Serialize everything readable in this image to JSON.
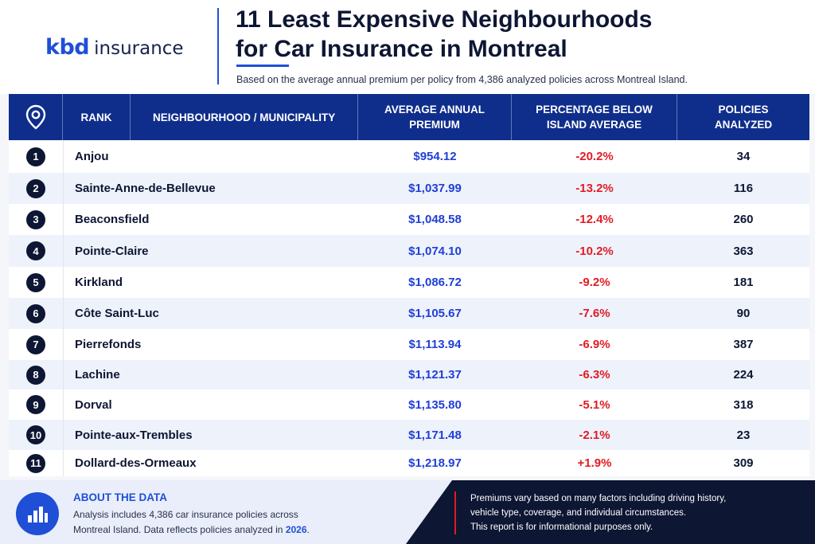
{
  "header": {
    "logo_primary": "kbd",
    "logo_secondary": "insurance",
    "title_line1": "11 Least Expensive Neighbourhoods",
    "title_line2": "for Car Insurance in Montreal",
    "subtitle": "Based on the average annual premium per policy from 4,386 analyzed policies across Montreal Island."
  },
  "table": {
    "icon": "location-pin-icon",
    "columns": {
      "rank": "RANK",
      "name": "NEIGHBOURHOOD / MUNICIPALITY",
      "premium_line1": "AVERAGE ANNUAL",
      "premium_line2": "PREMIUM",
      "pct_line1": "PERCENTAGE BELOW",
      "pct_line2": "ISLAND AVERAGE",
      "policies_line1": "POLICIES",
      "policies_line2": "ANALYZED"
    },
    "rows": [
      {
        "rank": "1",
        "name": "Anjou",
        "premium": "$954.12",
        "pct": "-20.2%",
        "policies": "34"
      },
      {
        "rank": "2",
        "name": "Sainte-Anne-de-Bellevue",
        "premium": "$1,037.99",
        "pct": "-13.2%",
        "policies": "116"
      },
      {
        "rank": "3",
        "name": "Beaconsfield",
        "premium": "$1,048.58",
        "pct": "-12.4%",
        "policies": "260"
      },
      {
        "rank": "4",
        "name": "Pointe-Claire",
        "premium": "$1,074.10",
        "pct": "-10.2%",
        "policies": "363"
      },
      {
        "rank": "5",
        "name": "Kirkland",
        "premium": "$1,086.72",
        "pct": "-9.2%",
        "policies": "181"
      },
      {
        "rank": "6",
        "name": "Côte Saint-Luc",
        "premium": "$1,105.67",
        "pct": "-7.6%",
        "policies": "90"
      },
      {
        "rank": "7",
        "name": "Pierrefonds",
        "premium": "$1,113.94",
        "pct": "-6.9%",
        "policies": "387"
      },
      {
        "rank": "8",
        "name": "Lachine",
        "premium": "$1,121.37",
        "pct": "-6.3%",
        "policies": "224"
      },
      {
        "rank": "9",
        "name": "Dorval",
        "premium": "$1,135.80",
        "pct": "-5.1%",
        "policies": "318"
      },
      {
        "rank": "10",
        "name": "Pointe-aux-Trembles",
        "premium": "$1,171.48",
        "pct": "-2.1%",
        "policies": "23"
      },
      {
        "rank": "11",
        "name": "Dollard-des-Ormeaux",
        "premium": "$1,218.97",
        "pct": "+1.9%",
        "policies": "309"
      }
    ]
  },
  "footer": {
    "icon": "bar-chart-icon",
    "about_title": "ABOUT THE DATA",
    "about_line1": "Analysis includes 4,386 car insurance policies across",
    "about_line2_prefix": "Montreal Island. Data reflects policies analyzed in ",
    "about_year": "2026",
    "about_line2_suffix": ".",
    "disclaimer_line1": "Premiums vary based on many factors including driving history,",
    "disclaimer_line2": "vehicle type, coverage, and individual circumstances.",
    "disclaimer_line3": "This report is for informational purposes only."
  },
  "colors": {
    "brand_blue": "#1f4fd6",
    "navy": "#0d1633",
    "header_blue": "#0f2e8c",
    "negative_red": "#e21b24"
  }
}
